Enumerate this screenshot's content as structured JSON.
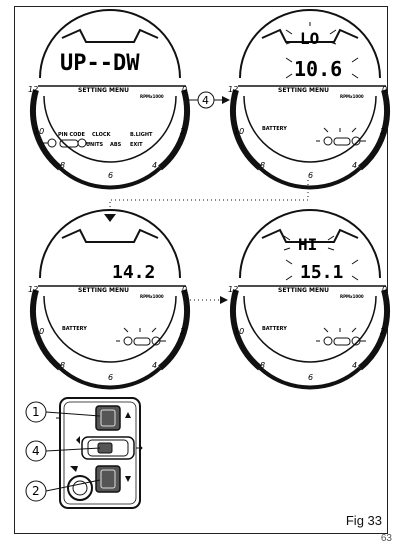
{
  "panels": [
    {
      "id": "panel-1",
      "display": "UP--DW",
      "menu_title": "SETTING MENU",
      "rpm_unit": "RPMx1000",
      "scale": [
        "12",
        "10",
        "8",
        "6",
        "4",
        "2",
        "0"
      ],
      "menu_items": [
        "PIN CODE",
        "CLOCK",
        "B.LIGHT",
        "UNITS",
        "ABS",
        "EXIT"
      ],
      "highlight": ""
    },
    {
      "id": "panel-2",
      "top_display": "LO",
      "display": "10.6",
      "menu_title": "SETTING MENU",
      "rpm_unit": "RPMx1000",
      "scale": [
        "12",
        "10",
        "8",
        "6",
        "4",
        "2",
        "0"
      ],
      "battery_label": "BATTERY"
    },
    {
      "id": "panel-3",
      "display": "14.2",
      "menu_title": "SETTING MENU",
      "rpm_unit": "RPMx1000",
      "scale": [
        "12",
        "10",
        "8",
        "6",
        "4",
        "2",
        "0"
      ],
      "battery_label": "BATTERY"
    },
    {
      "id": "panel-4",
      "top_display": "HI",
      "display": "15.1",
      "menu_title": "SETTING MENU",
      "rpm_unit": "RPMx1000",
      "scale": [
        "12",
        "10",
        "8",
        "6",
        "4",
        "2",
        "0"
      ],
      "battery_label": "BATTERY"
    }
  ],
  "callouts": [
    "4",
    "1",
    "4",
    "2"
  ],
  "figure_label": "Fig 33",
  "page_number": "63"
}
